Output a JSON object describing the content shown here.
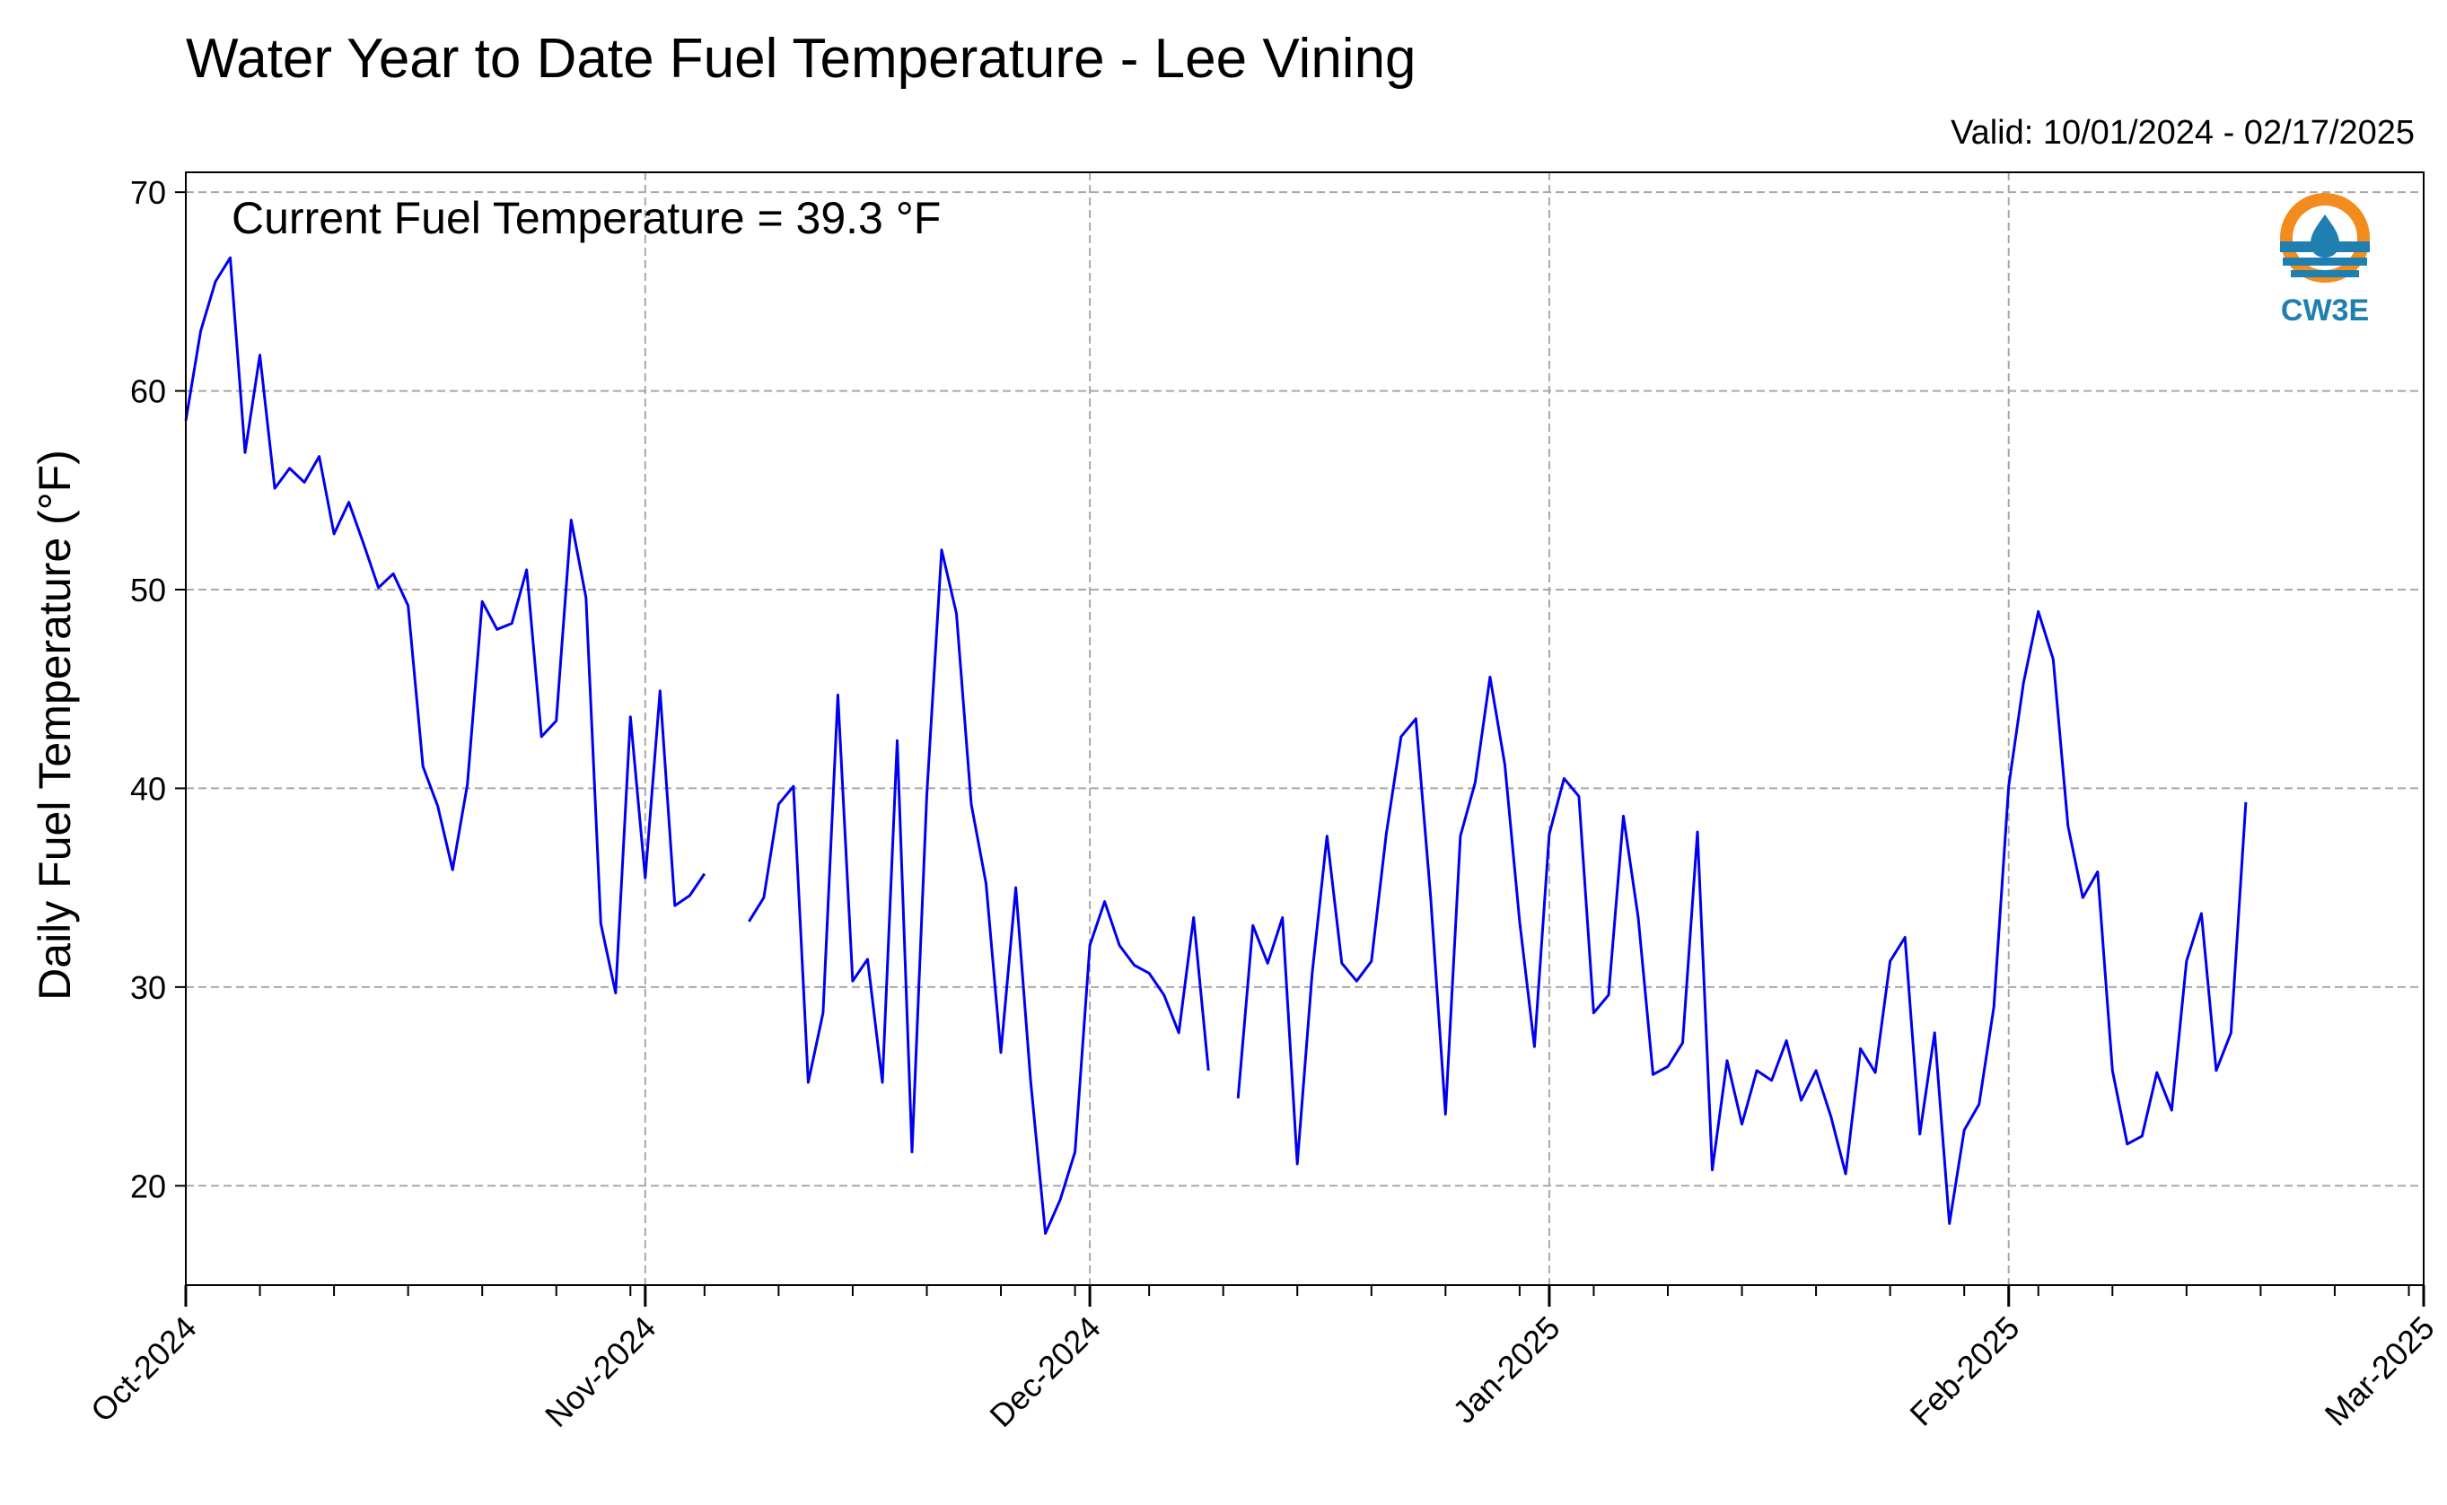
{
  "chart_data": {
    "type": "line",
    "title": "Water Year to Date Fuel Temperature - Lee Vining",
    "subtitle": "Valid: 10/01/2024 - 02/17/2025",
    "annotation": "Current Fuel Temperature = 39.3 °F",
    "xlabel": "",
    "ylabel": "Daily Fuel Temperature (°F)",
    "ylim": [
      15,
      71
    ],
    "yticks": [
      20,
      30,
      40,
      50,
      60,
      70
    ],
    "xlim": [
      "2024-10-01",
      "2025-03-01"
    ],
    "xticks": [
      {
        "date": "2024-10-01",
        "label": "Oct-2024"
      },
      {
        "date": "2024-11-01",
        "label": "Nov-2024"
      },
      {
        "date": "2024-12-01",
        "label": "Dec-2024"
      },
      {
        "date": "2025-01-01",
        "label": "Jan-2025"
      },
      {
        "date": "2025-02-01",
        "label": "Feb-2025"
      },
      {
        "date": "2025-03-01",
        "label": "Mar-2025"
      }
    ],
    "grid": true,
    "line_color": "#0000ee",
    "series": [
      {
        "x": [
          "2024-10-01",
          "2024-10-02",
          "2024-10-03",
          "2024-10-04",
          "2024-10-05",
          "2024-10-06",
          "2024-10-07",
          "2024-10-08",
          "2024-10-09",
          "2024-10-10",
          "2024-10-11",
          "2024-10-12",
          "2024-10-13",
          "2024-10-14",
          "2024-10-15",
          "2024-10-16",
          "2024-10-17",
          "2024-10-18",
          "2024-10-19",
          "2024-10-20",
          "2024-10-21",
          "2024-10-22",
          "2024-10-23",
          "2024-10-24",
          "2024-10-25",
          "2024-10-26",
          "2024-10-27",
          "2024-10-28",
          "2024-10-29",
          "2024-10-30",
          "2024-10-31",
          "2024-11-01",
          "2024-11-02",
          "2024-11-03",
          "2024-11-04",
          "2024-11-05",
          "2024-11-06",
          "2024-11-07",
          "2024-11-08",
          "2024-11-09",
          "2024-11-10",
          "2024-11-11",
          "2024-11-12",
          "2024-11-13",
          "2024-11-14",
          "2024-11-15",
          "2024-11-16",
          "2024-11-17",
          "2024-11-18",
          "2024-11-19",
          "2024-11-20",
          "2024-11-21",
          "2024-11-22",
          "2024-11-23",
          "2024-11-24",
          "2024-11-25",
          "2024-11-26",
          "2024-11-27",
          "2024-11-28",
          "2024-11-29",
          "2024-11-30",
          "2024-12-01",
          "2024-12-02",
          "2024-12-03",
          "2024-12-04",
          "2024-12-05",
          "2024-12-06",
          "2024-12-07",
          "2024-12-08",
          "2024-12-09",
          "2024-12-10",
          "2024-12-11",
          "2024-12-12",
          "2024-12-13",
          "2024-12-14",
          "2024-12-15",
          "2024-12-16",
          "2024-12-17",
          "2024-12-18",
          "2024-12-19",
          "2024-12-20",
          "2024-12-21",
          "2024-12-22",
          "2024-12-23",
          "2024-12-24",
          "2024-12-25",
          "2024-12-26",
          "2024-12-27",
          "2024-12-28",
          "2024-12-29",
          "2024-12-30",
          "2024-12-31",
          "2025-01-01",
          "2025-01-02",
          "2025-01-03",
          "2025-01-04",
          "2025-01-05",
          "2025-01-06",
          "2025-01-07",
          "2025-01-08",
          "2025-01-09",
          "2025-01-10",
          "2025-01-11",
          "2025-01-12",
          "2025-01-13",
          "2025-01-14",
          "2025-01-15",
          "2025-01-16",
          "2025-01-17",
          "2025-01-18",
          "2025-01-19",
          "2025-01-20",
          "2025-01-21",
          "2025-01-22",
          "2025-01-23",
          "2025-01-24",
          "2025-01-25",
          "2025-01-26",
          "2025-01-27",
          "2025-01-28",
          "2025-01-29",
          "2025-01-30",
          "2025-01-31",
          "2025-02-01",
          "2025-02-02",
          "2025-02-03",
          "2025-02-04",
          "2025-02-05",
          "2025-02-06",
          "2025-02-07",
          "2025-02-08",
          "2025-02-09",
          "2025-02-10",
          "2025-02-11",
          "2025-02-12",
          "2025-02-13",
          "2025-02-14",
          "2025-02-15",
          "2025-02-16",
          "2025-02-17"
        ],
        "y": [
          58.5,
          63.0,
          65.5,
          66.7,
          56.9,
          61.8,
          55.1,
          56.1,
          55.4,
          56.7,
          52.8,
          54.4,
          52.3,
          50.1,
          50.8,
          49.2,
          41.1,
          39.1,
          35.9,
          40.2,
          49.4,
          48.0,
          48.3,
          51.0,
          42.6,
          43.4,
          53.5,
          49.6,
          33.2,
          29.7,
          43.6,
          35.5,
          44.9,
          34.1,
          34.6,
          35.7,
          null,
          null,
          33.3,
          34.5,
          39.2,
          40.1,
          25.2,
          28.7,
          44.7,
          30.3,
          31.4,
          25.2,
          42.4,
          21.7,
          39.7,
          52.0,
          48.8,
          39.2,
          35.2,
          26.7,
          35.0,
          25.3,
          17.6,
          19.3,
          21.7,
          32.1,
          34.3,
          32.1,
          31.1,
          30.7,
          29.6,
          27.7,
          33.5,
          25.8,
          null,
          24.4,
          33.1,
          31.2,
          33.5,
          21.1,
          30.7,
          37.6,
          31.2,
          30.3,
          31.3,
          37.7,
          42.6,
          43.5,
          34.5,
          23.6,
          37.6,
          40.3,
          45.6,
          41.2,
          33.3,
          27.0,
          37.7,
          40.5,
          39.6,
          28.7,
          29.6,
          38.6,
          33.5,
          25.6,
          26.0,
          27.2,
          37.8,
          20.8,
          26.3,
          23.1,
          25.8,
          25.3,
          27.3,
          24.3,
          25.8,
          23.5,
          20.6,
          26.9,
          25.7,
          31.3,
          32.5,
          22.6,
          27.7,
          18.1,
          22.8,
          24.1,
          29.0,
          40.1,
          45.3,
          48.9,
          46.5,
          38.1,
          34.5,
          35.8,
          25.8,
          22.1,
          22.5,
          25.7,
          23.8,
          31.3,
          33.7,
          25.8,
          27.7,
          39.3
        ]
      }
    ],
    "logo": {
      "text": "CW3E",
      "colors": {
        "orange": "#f28c1e",
        "blue": "#1f7fb0"
      }
    }
  }
}
